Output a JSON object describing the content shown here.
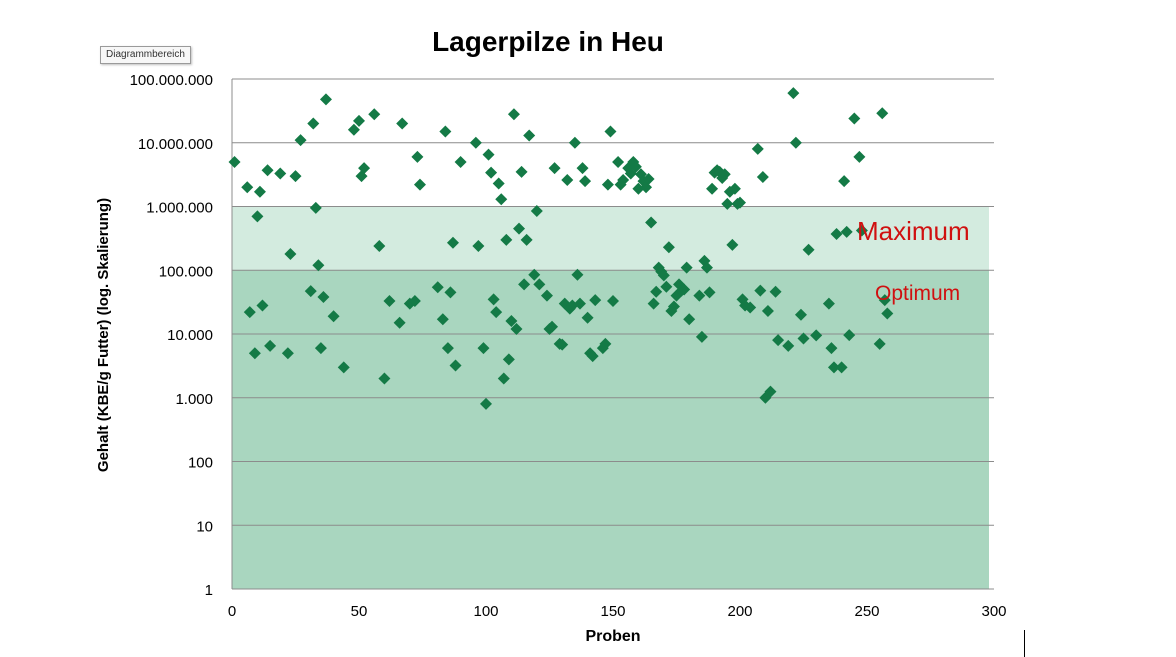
{
  "tooltip": "Diagrammbereich",
  "chart_data": {
    "type": "scatter",
    "title": "Lagerpilze in Heu",
    "xlabel": "Proben",
    "ylabel": "Gehalt (KBE/g Futter)  (log. Skalierung)",
    "xlim": [
      0,
      300
    ],
    "ylim": [
      1,
      100000000
    ],
    "yscale": "log",
    "grid": true,
    "x_ticks": [
      "0",
      "50",
      "100",
      "150",
      "200",
      "250",
      "300"
    ],
    "y_ticks": [
      "1",
      "10",
      "100",
      "1.000",
      "10.000",
      "100.000",
      "1.000.000",
      "10.000.000",
      "100.000.000"
    ],
    "bands": [
      {
        "label": "Optimum",
        "from": 1,
        "to": 100000,
        "color": "#a9d6bf"
      },
      {
        "label": "Maximum",
        "from": 100000,
        "to": 1000000,
        "color": "#d3ebdf"
      }
    ],
    "marker_color": "#147a46",
    "annotation_color": "#d01010",
    "points": [
      [
        1,
        5000000
      ],
      [
        6,
        2000000
      ],
      [
        7,
        22000
      ],
      [
        9,
        5000
      ],
      [
        10,
        700000
      ],
      [
        11,
        1700000
      ],
      [
        12,
        28000
      ],
      [
        14,
        3700000
      ],
      [
        15,
        6500
      ],
      [
        19,
        3300000
      ],
      [
        22,
        5000
      ],
      [
        23,
        180000
      ],
      [
        25,
        3000000
      ],
      [
        27,
        11000000
      ],
      [
        31,
        47000
      ],
      [
        32,
        20000000
      ],
      [
        33,
        950000
      ],
      [
        34,
        120000
      ],
      [
        35,
        6000
      ],
      [
        36,
        38000
      ],
      [
        37,
        48000000
      ],
      [
        40,
        19000
      ],
      [
        44,
        3000
      ],
      [
        48,
        16000000
      ],
      [
        50,
        22000000
      ],
      [
        51,
        3000000
      ],
      [
        52,
        4000000
      ],
      [
        56,
        28000000
      ],
      [
        58,
        240000
      ],
      [
        60,
        2000
      ],
      [
        62,
        33000
      ],
      [
        66,
        15000
      ],
      [
        67,
        20000000
      ],
      [
        70,
        30000
      ],
      [
        72,
        33000
      ],
      [
        73,
        6000000
      ],
      [
        74,
        2200000
      ],
      [
        81,
        54000
      ],
      [
        83,
        17000
      ],
      [
        84,
        15000000
      ],
      [
        85,
        6000
      ],
      [
        86,
        45000
      ],
      [
        87,
        270000
      ],
      [
        88,
        3200
      ],
      [
        90,
        5000000
      ],
      [
        96,
        10000000
      ],
      [
        97,
        240000
      ],
      [
        99,
        6000
      ],
      [
        100,
        800
      ],
      [
        101,
        6500000
      ],
      [
        102,
        3400000
      ],
      [
        103,
        35000
      ],
      [
        104,
        22000
      ],
      [
        105,
        2300000
      ],
      [
        106,
        1300000
      ],
      [
        107,
        2000
      ],
      [
        108,
        300000
      ],
      [
        109,
        4000
      ],
      [
        110,
        16000
      ],
      [
        111,
        28000000
      ],
      [
        112,
        12000
      ],
      [
        113,
        450000
      ],
      [
        114,
        3500000
      ],
      [
        115,
        60000
      ],
      [
        116,
        300000
      ],
      [
        117,
        13000000
      ],
      [
        119,
        85000
      ],
      [
        120,
        850000
      ],
      [
        121,
        60000
      ],
      [
        124,
        40000
      ],
      [
        125,
        12000
      ],
      [
        126,
        13000
      ],
      [
        127,
        4000000
      ],
      [
        129,
        7000
      ],
      [
        130,
        6800
      ],
      [
        131,
        30000
      ],
      [
        132,
        2600000
      ],
      [
        133,
        25000
      ],
      [
        134,
        28000
      ],
      [
        135,
        10000000
      ],
      [
        136,
        85000
      ],
      [
        137,
        30000
      ],
      [
        138,
        4000000
      ],
      [
        139,
        2500000
      ],
      [
        140,
        18000
      ],
      [
        141,
        5000
      ],
      [
        142,
        4500
      ],
      [
        143,
        34000
      ],
      [
        146,
        6000
      ],
      [
        147,
        7000
      ],
      [
        148,
        2200000
      ],
      [
        149,
        15000000
      ],
      [
        150,
        33000
      ],
      [
        152,
        5000000
      ],
      [
        153,
        2200000
      ],
      [
        154,
        2600000
      ],
      [
        156,
        4000000
      ],
      [
        157,
        3300000
      ],
      [
        158,
        5000000
      ],
      [
        159,
        4200000
      ],
      [
        160,
        1900000
      ],
      [
        161,
        3200000
      ],
      [
        162,
        2500000
      ],
      [
        163,
        2000000
      ],
      [
        164,
        2700000
      ],
      [
        165,
        560000
      ],
      [
        166,
        30000
      ],
      [
        167,
        46000
      ],
      [
        168,
        110000
      ],
      [
        169,
        95000
      ],
      [
        170,
        83000
      ],
      [
        171,
        55000
      ],
      [
        172,
        230000
      ],
      [
        173,
        23000
      ],
      [
        174,
        27000
      ],
      [
        175,
        40000
      ],
      [
        176,
        60000
      ],
      [
        177,
        48000
      ],
      [
        178,
        50000
      ],
      [
        179,
        110000
      ],
      [
        180,
        17000
      ],
      [
        184,
        40000
      ],
      [
        185,
        9000
      ],
      [
        186,
        140000
      ],
      [
        187,
        110000
      ],
      [
        188,
        45000
      ],
      [
        189,
        1900000
      ],
      [
        190,
        3400000
      ],
      [
        191,
        3700000
      ],
      [
        192,
        3500000
      ],
      [
        193,
        2800000
      ],
      [
        194,
        3200000
      ],
      [
        195,
        1100000
      ],
      [
        196,
        1700000
      ],
      [
        197,
        250000
      ],
      [
        198,
        1900000
      ],
      [
        199,
        1100000
      ],
      [
        200,
        1150000
      ],
      [
        201,
        35000
      ],
      [
        202,
        28000
      ],
      [
        204,
        26000
      ],
      [
        207,
        8000000
      ],
      [
        208,
        48000
      ],
      [
        209,
        2900000
      ],
      [
        210,
        1000
      ],
      [
        211,
        23000
      ],
      [
        212,
        1250
      ],
      [
        214,
        46000
      ],
      [
        215,
        8000
      ],
      [
        219,
        6500
      ],
      [
        221,
        60000000
      ],
      [
        222,
        10000000
      ],
      [
        224,
        20000
      ],
      [
        225,
        8500
      ],
      [
        227,
        210000
      ],
      [
        230,
        9500
      ],
      [
        235,
        30000
      ],
      [
        236,
        6000
      ],
      [
        237,
        3000
      ],
      [
        238,
        370000
      ],
      [
        240,
        3000
      ],
      [
        241,
        2500000
      ],
      [
        242,
        400000
      ],
      [
        243,
        9600
      ],
      [
        245,
        24000000
      ],
      [
        247,
        6000000
      ],
      [
        248,
        420000
      ],
      [
        255,
        7000
      ],
      [
        256,
        29000000
      ],
      [
        257,
        34000
      ],
      [
        258,
        21000
      ]
    ]
  }
}
